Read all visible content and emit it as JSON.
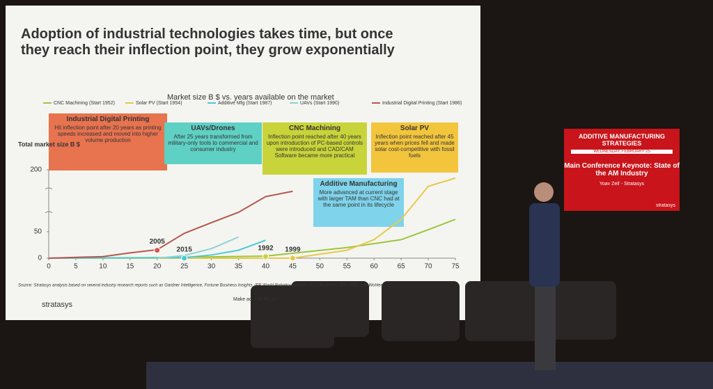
{
  "slide": {
    "title": "Adoption of industrial technologies takes time, but once they reach their inflection point, they grow exponentially",
    "callouts": [
      {
        "title": "Industrial Digital Printing",
        "text": "Hit inflection point after 20 years as printing speeds increased and moved into higher volume production",
        "color": "#e8734f"
      },
      {
        "title": "UAVs/Drones",
        "text": "After 25 years transformed from military-only tools to commercial and consumer industry",
        "color": "#5fd0c4"
      },
      {
        "title": "CNC Machining",
        "text": "Inflection point reached after 40 years upon introduction of PC-based controls were introduced and CAD/CAM Software became more practical",
        "color": "#c9d43a"
      },
      {
        "title": "Solar PV",
        "text": "Inflection point reached after 45 years when prices fell and made solar cost-competitive with fossil fuels",
        "color": "#f2c53d"
      },
      {
        "title": "Additive Manufacturing",
        "text": "More advanced at current stage with larger TAM than CNC had at the same point in its lifecycle",
        "color": "#7fd3ea"
      }
    ],
    "source": "Source: Stratasys analysis based on several industry research reports such as Gardner Intelligence, Fortune Business Insights, IFR World Robotics Reports, BCC Research, IEA, NREL and Wohlers",
    "logo": "stratasys",
    "footer": "Make ad... ck for you"
  },
  "screen": {
    "brand": "ADDITIVE MANUFACTURING STRATEGIES",
    "date": "WEDNESDAY, FEBRUARY 25",
    "session": "Main Conference Keynote: State of the AM Industry",
    "speaker": "Yoav Zeif - Stratasys",
    "sponsor": "stratasys"
  },
  "chart_data": {
    "type": "line",
    "title": "Market size B $ vs. years available on the market",
    "y_label": "Total market size B $",
    "xlim": [
      0,
      75
    ],
    "xticks": [
      0,
      5,
      10,
      15,
      20,
      25,
      30,
      35,
      40,
      45,
      50,
      55,
      60,
      65,
      70,
      75
    ],
    "ylim": [
      0,
      200
    ],
    "yticks": [
      0,
      50,
      200
    ],
    "y_axis_break": true,
    "series": [
      {
        "name": "CNC Machining (Start 1952)",
        "color": "#9bc53d",
        "x": [
          0,
          20,
          40,
          55,
          65,
          70,
          75
        ],
        "values": [
          0,
          1,
          4,
          20,
          35,
          55,
          80
        ]
      },
      {
        "name": "Solar PV (Start 1954)",
        "color": "#e8c84a",
        "x": [
          0,
          45,
          55,
          60,
          65,
          70,
          75
        ],
        "values": [
          0,
          0,
          15,
          35,
          80,
          160,
          180
        ]
      },
      {
        "name": "Additive Mfg (Start 1987)",
        "color": "#4cc9d6",
        "x": [
          0,
          25,
          30,
          35,
          40
        ],
        "values": [
          0,
          1,
          6,
          15,
          34
        ]
      },
      {
        "name": "UAVs (Start 1990)",
        "color": "#8fd3d0",
        "x": [
          20,
          25,
          30,
          35
        ],
        "values": [
          0,
          5,
          18,
          40
        ]
      },
      {
        "name": "Industrial Digital Printing (Start 1986)",
        "color": "#b5564a",
        "x": [
          0,
          10,
          15,
          20,
          25,
          30,
          35,
          40,
          45
        ],
        "values": [
          0,
          3,
          10,
          16,
          47,
          72,
          97,
          135,
          148
        ]
      }
    ],
    "annotations": [
      {
        "text": "2005",
        "x": 20,
        "y": 15,
        "color": "#d9534f"
      },
      {
        "text": "2015",
        "x": 25,
        "y": 0,
        "color": "#4cc9d6"
      },
      {
        "text": "1992",
        "x": 40,
        "y": 3,
        "color": "#c9d43a"
      },
      {
        "text": "1999",
        "x": 45,
        "y": 0,
        "color": "#e8c84a"
      }
    ]
  }
}
